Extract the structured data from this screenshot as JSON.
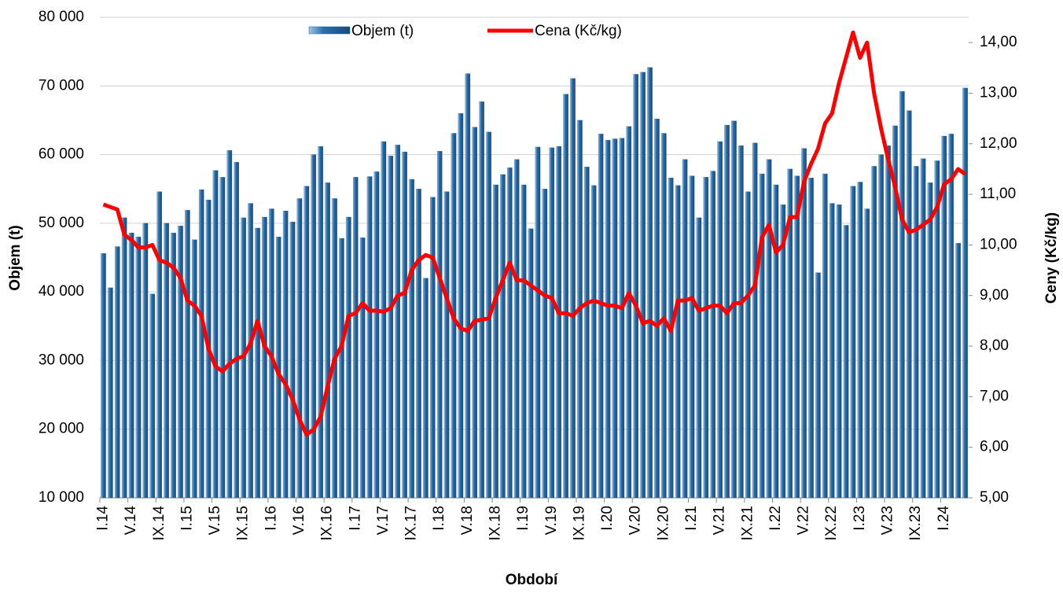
{
  "chart_data": {
    "type": "combo",
    "x_label": "Období",
    "y_label": "Objem (t)",
    "y2_label": "Ceny (Kč/kg)",
    "categories": [
      "I.14",
      null,
      null,
      null,
      "V.14",
      null,
      null,
      null,
      "IX.14",
      null,
      null,
      null,
      "I.15",
      null,
      null,
      null,
      "V.15",
      null,
      null,
      null,
      "IX.15",
      null,
      null,
      null,
      "I.16",
      null,
      null,
      null,
      "V.16",
      null,
      null,
      null,
      "IX.16",
      null,
      null,
      null,
      "I.17",
      null,
      null,
      null,
      "V.17",
      null,
      null,
      null,
      "IX.17",
      null,
      null,
      null,
      "I.18",
      null,
      null,
      null,
      "V.18",
      null,
      null,
      null,
      "IX.18",
      null,
      null,
      null,
      "I.19",
      null,
      null,
      null,
      "V.19",
      null,
      null,
      null,
      "IX.19",
      null,
      null,
      null,
      "I.20",
      null,
      null,
      null,
      "V.20",
      null,
      null,
      null,
      "IX.20",
      null,
      null,
      null,
      "I.21",
      null,
      null,
      null,
      "V.21",
      null,
      null,
      null,
      "IX.21",
      null,
      null,
      null,
      "I.22",
      null,
      null,
      null,
      "V.22",
      null,
      null,
      null,
      "IX.22",
      null,
      null,
      null,
      "I.23",
      null,
      null,
      null,
      "V.23",
      null,
      null,
      null,
      "IX.23",
      null,
      null,
      null,
      "I.24",
      null,
      null,
      null
    ],
    "series": [
      {
        "name": "Objem (t)",
        "type": "bar",
        "color": "#1f5f9a",
        "values": [
          45600,
          40600,
          46600,
          50800,
          48600,
          48000,
          50000,
          39700,
          54600,
          50000,
          48600,
          49600,
          51900,
          47600,
          54900,
          53400,
          57700,
          56700,
          60600,
          58900,
          50800,
          52900,
          49300,
          50900,
          52100,
          48000,
          51800,
          50200,
          53600,
          55400,
          60000,
          61200,
          55900,
          53600,
          47800,
          50900,
          56700,
          47900,
          56800,
          57500,
          61900,
          59800,
          61400,
          60400,
          56400,
          55000,
          42000,
          53800,
          60500,
          54600,
          63100,
          66000,
          71800,
          64000,
          67700,
          63300,
          55600,
          57100,
          58100,
          59300,
          55600,
          49200,
          61100,
          55000,
          61000,
          61200,
          68800,
          71100,
          65000,
          58200,
          55500,
          63000,
          62100,
          62300,
          62400,
          64100,
          71700,
          72000,
          72700,
          65200,
          63100,
          56600,
          55500,
          59300,
          56900,
          50800,
          56700,
          57600,
          61900,
          64300,
          64900,
          61300,
          54600,
          61700,
          57200,
          59300,
          55600,
          52700,
          57900,
          56900,
          60900,
          56600,
          42800,
          57200,
          52900,
          52700,
          49700,
          55400,
          56000,
          52100,
          58300,
          60000,
          61300,
          64200,
          69200,
          66400,
          58300,
          59400,
          55900,
          59100,
          62700,
          63000,
          47100,
          69700
        ]
      },
      {
        "name": "Cena (Kč/kg)",
        "type": "line",
        "axis": "y2",
        "color": "#ff0000",
        "values": [
          10.8,
          10.75,
          10.7,
          10.2,
          10.1,
          9.95,
          9.95,
          10.0,
          9.7,
          9.65,
          9.55,
          9.35,
          8.9,
          8.8,
          8.6,
          7.95,
          7.6,
          7.5,
          7.65,
          7.75,
          7.8,
          8.05,
          8.5,
          8.0,
          7.8,
          7.45,
          7.25,
          6.95,
          6.55,
          6.25,
          6.35,
          6.6,
          7.2,
          7.75,
          8.0,
          8.6,
          8.65,
          8.85,
          8.7,
          8.7,
          8.68,
          8.75,
          9.0,
          9.05,
          9.5,
          9.7,
          9.8,
          9.75,
          9.35,
          8.95,
          8.55,
          8.35,
          8.3,
          8.5,
          8.52,
          8.55,
          8.95,
          9.3,
          9.65,
          9.3,
          9.3,
          9.2,
          9.1,
          9.0,
          8.95,
          8.65,
          8.65,
          8.6,
          8.75,
          8.85,
          8.9,
          8.85,
          8.8,
          8.8,
          8.75,
          9.05,
          8.8,
          8.45,
          8.5,
          8.4,
          8.55,
          8.3,
          8.9,
          8.9,
          8.95,
          8.7,
          8.75,
          8.8,
          8.8,
          8.65,
          8.85,
          8.85,
          9.0,
          9.2,
          10.15,
          10.4,
          9.85,
          10.0,
          10.55,
          10.55,
          11.25,
          11.6,
          11.9,
          12.4,
          12.6,
          13.2,
          13.7,
          14.2,
          13.7,
          14.0,
          13.0,
          12.3,
          11.7,
          11.15,
          10.5,
          10.25,
          10.3,
          10.4,
          10.5,
          10.75,
          11.2,
          11.3,
          11.5,
          11.4
        ]
      }
    ],
    "ylim": [
      10000,
      80000
    ],
    "yticks": [
      {
        "value": 10000,
        "label": "10 000"
      },
      {
        "value": 20000,
        "label": "20 000"
      },
      {
        "value": 30000,
        "label": "30 000"
      },
      {
        "value": 40000,
        "label": "40 000"
      },
      {
        "value": 50000,
        "label": "50 000"
      },
      {
        "value": 60000,
        "label": "60 000"
      },
      {
        "value": 70000,
        "label": "70 000"
      },
      {
        "value": 80000,
        "label": "80 000"
      }
    ],
    "y2lim": [
      5,
      14.5
    ],
    "y2ticks": [
      {
        "value": 5,
        "label": "5,00"
      },
      {
        "value": 6,
        "label": "6,00"
      },
      {
        "value": 7,
        "label": "7,00"
      },
      {
        "value": 8,
        "label": "8,00"
      },
      {
        "value": 9,
        "label": "9,00"
      },
      {
        "value": 10,
        "label": "10,00"
      },
      {
        "value": 11,
        "label": "11,00"
      },
      {
        "value": 12,
        "label": "12,00"
      },
      {
        "value": 13,
        "label": "13,00"
      },
      {
        "value": 14,
        "label": "14,00"
      }
    ],
    "grid": true
  }
}
